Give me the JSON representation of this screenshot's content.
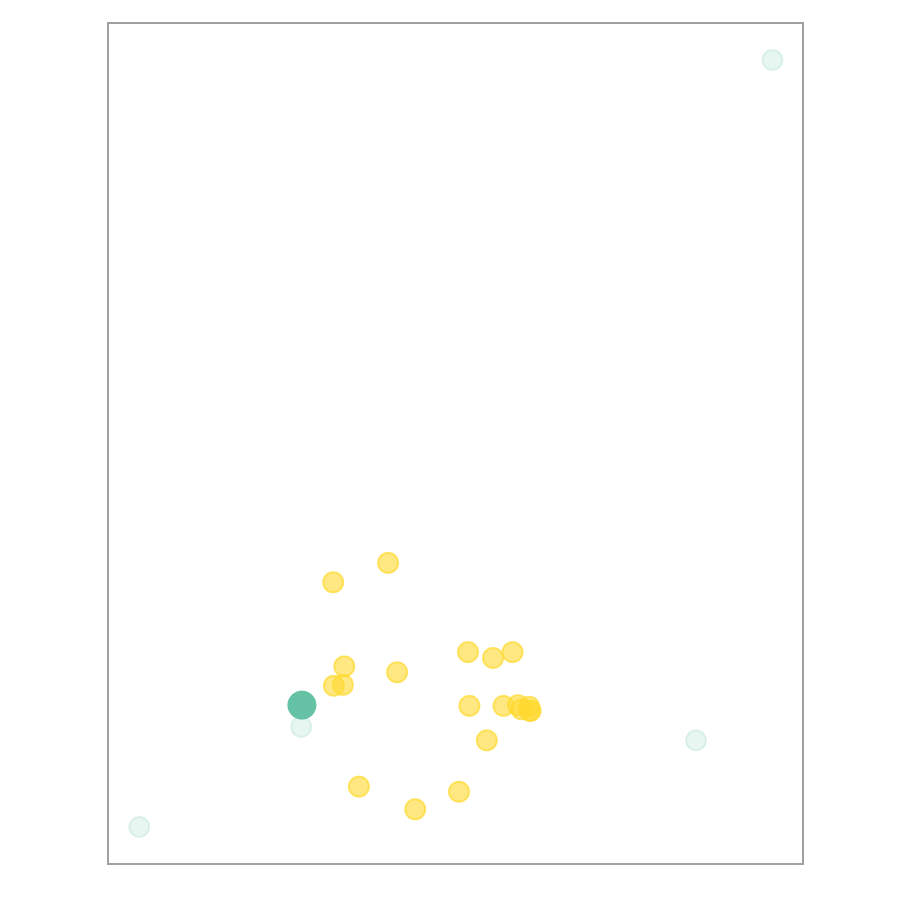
{
  "chart_data": {
    "type": "scatter",
    "title": "",
    "xlabel": "",
    "ylabel": "",
    "xlim": [
      0,
      1000
    ],
    "ylim": [
      0,
      1000
    ],
    "grid": false,
    "legend": "none",
    "axis_color": "#a0a0a0",
    "series": [
      {
        "color": "#ffd92f",
        "opacity": 0.6,
        "x": [
          324,
          403,
          338,
          340,
          325,
          416,
          518,
          554,
          582,
          569,
          520,
          590,
          607,
          595,
          606,
          608,
          545,
          361,
          442,
          505
        ],
        "y": [
          335,
          358,
          213,
          235,
          212,
          228,
          252,
          245,
          252,
          188,
          188,
          189,
          182,
          184,
          187,
          182,
          147,
          92,
          65,
          86
        ]
      },
      {
        "color": "#66c2a5",
        "opacity": 0.15,
        "x": [
          956,
          278,
          45,
          846
        ],
        "y": [
          956,
          163,
          44,
          147
        ]
      },
      {
        "color": "#66c2a5",
        "opacity": 1.0,
        "x": [
          279
        ],
        "y": [
          189
        ]
      }
    ]
  }
}
